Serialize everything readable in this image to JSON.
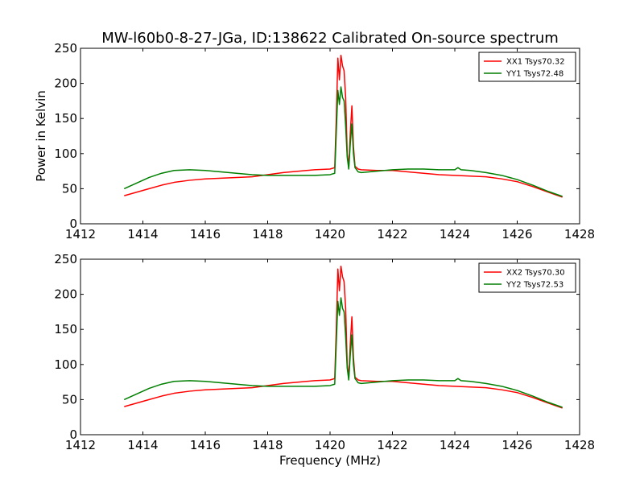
{
  "figure": {
    "title": "MW-l60b0-8-27-JGa, ID:138622 Calibrated On-source spectrum",
    "background": "#ffffff"
  },
  "chart_data": [
    {
      "type": "line",
      "ylabel": "Power in Kelvin",
      "xlabel": "",
      "xlim": [
        1412,
        1428
      ],
      "ylim": [
        0,
        250
      ],
      "xticks": [
        "1412",
        "1414",
        "1416",
        "1418",
        "1420",
        "1422",
        "1424",
        "1426",
        "1428"
      ],
      "yticks": [
        "0",
        "50",
        "100",
        "150",
        "200",
        "250"
      ],
      "legend_position": "top-right",
      "grid": false,
      "series": [
        {
          "name": "XX1 Tsys70.32",
          "color": "#ff0000",
          "x": [
            1413.4,
            1413.8,
            1414.2,
            1414.6,
            1415.0,
            1415.5,
            1416.0,
            1416.5,
            1417.0,
            1417.5,
            1418.0,
            1418.5,
            1419.0,
            1419.5,
            1420.0,
            1420.15,
            1420.2,
            1420.25,
            1420.3,
            1420.35,
            1420.4,
            1420.45,
            1420.5,
            1420.55,
            1420.6,
            1420.65,
            1420.7,
            1420.75,
            1420.8,
            1420.9,
            1421.0,
            1421.5,
            1422.0,
            1422.5,
            1423.0,
            1423.5,
            1424.0,
            1424.5,
            1425.0,
            1425.5,
            1426.0,
            1426.5,
            1427.0,
            1427.45
          ],
          "y": [
            40,
            45,
            50,
            55,
            59,
            62,
            64,
            65,
            66,
            67,
            70,
            73,
            75,
            77,
            78,
            80,
            150,
            236,
            205,
            240,
            225,
            218,
            180,
            100,
            82,
            130,
            168,
            110,
            82,
            78,
            77,
            76,
            76,
            74,
            72,
            70,
            69,
            68,
            67,
            64,
            60,
            53,
            45,
            38
          ]
        },
        {
          "name": "YY1 Tsys72.48",
          "color": "#007f00",
          "x": [
            1413.4,
            1413.8,
            1414.2,
            1414.6,
            1415.0,
            1415.5,
            1416.0,
            1416.5,
            1417.0,
            1417.5,
            1418.0,
            1418.5,
            1419.0,
            1419.5,
            1420.0,
            1420.15,
            1420.2,
            1420.25,
            1420.3,
            1420.35,
            1420.4,
            1420.45,
            1420.5,
            1420.55,
            1420.6,
            1420.65,
            1420.7,
            1420.75,
            1420.8,
            1420.9,
            1421.0,
            1421.5,
            1422.0,
            1422.5,
            1423.0,
            1423.5,
            1424.0,
            1424.1,
            1424.2,
            1424.5,
            1425.0,
            1425.5,
            1426.0,
            1426.5,
            1427.0,
            1427.45
          ],
          "y": [
            50,
            58,
            66,
            72,
            76,
            77,
            76,
            74,
            72,
            70,
            69,
            69,
            69,
            69,
            70,
            72,
            130,
            190,
            170,
            195,
            180,
            175,
            140,
            95,
            78,
            115,
            142,
            100,
            80,
            74,
            73,
            75,
            77,
            78,
            78,
            77,
            77,
            80,
            77,
            76,
            73,
            69,
            63,
            55,
            46,
            39
          ]
        }
      ]
    },
    {
      "type": "line",
      "ylabel": "",
      "xlabel": "Frequency (MHz)",
      "xlim": [
        1412,
        1428
      ],
      "ylim": [
        0,
        250
      ],
      "xticks": [
        "1412",
        "1414",
        "1416",
        "1418",
        "1420",
        "1422",
        "1424",
        "1426",
        "1428"
      ],
      "yticks": [
        "0",
        "50",
        "100",
        "150",
        "200",
        "250"
      ],
      "legend_position": "top-right",
      "grid": false,
      "series": [
        {
          "name": "XX2 Tsys70.30",
          "color": "#ff0000",
          "x": [
            1413.4,
            1413.8,
            1414.2,
            1414.6,
            1415.0,
            1415.5,
            1416.0,
            1416.5,
            1417.0,
            1417.5,
            1418.0,
            1418.5,
            1419.0,
            1419.5,
            1420.0,
            1420.15,
            1420.2,
            1420.25,
            1420.3,
            1420.35,
            1420.4,
            1420.45,
            1420.5,
            1420.55,
            1420.6,
            1420.65,
            1420.7,
            1420.75,
            1420.8,
            1420.9,
            1421.0,
            1421.5,
            1422.0,
            1422.5,
            1423.0,
            1423.5,
            1424.0,
            1424.5,
            1425.0,
            1425.5,
            1426.0,
            1426.5,
            1427.0,
            1427.45
          ],
          "y": [
            40,
            45,
            50,
            55,
            59,
            62,
            64,
            65,
            66,
            67,
            70,
            73,
            75,
            77,
            78,
            80,
            150,
            236,
            205,
            240,
            225,
            218,
            180,
            100,
            82,
            130,
            168,
            110,
            82,
            78,
            77,
            76,
            76,
            74,
            72,
            70,
            69,
            68,
            67,
            64,
            60,
            53,
            45,
            38
          ]
        },
        {
          "name": "YY2 Tsys72.53",
          "color": "#007f00",
          "x": [
            1413.4,
            1413.8,
            1414.2,
            1414.6,
            1415.0,
            1415.5,
            1416.0,
            1416.5,
            1417.0,
            1417.5,
            1418.0,
            1418.5,
            1419.0,
            1419.5,
            1420.0,
            1420.15,
            1420.2,
            1420.25,
            1420.3,
            1420.35,
            1420.4,
            1420.45,
            1420.5,
            1420.55,
            1420.6,
            1420.65,
            1420.7,
            1420.75,
            1420.8,
            1420.9,
            1421.0,
            1421.5,
            1422.0,
            1422.5,
            1423.0,
            1423.5,
            1424.0,
            1424.1,
            1424.2,
            1424.5,
            1425.0,
            1425.5,
            1426.0,
            1426.5,
            1427.0,
            1427.45
          ],
          "y": [
            50,
            58,
            66,
            72,
            76,
            77,
            76,
            74,
            72,
            70,
            69,
            69,
            69,
            69,
            70,
            72,
            130,
            190,
            170,
            195,
            180,
            175,
            140,
            95,
            78,
            115,
            142,
            100,
            80,
            74,
            73,
            75,
            77,
            78,
            78,
            77,
            77,
            80,
            77,
            76,
            73,
            69,
            63,
            55,
            46,
            39
          ]
        }
      ]
    }
  ]
}
